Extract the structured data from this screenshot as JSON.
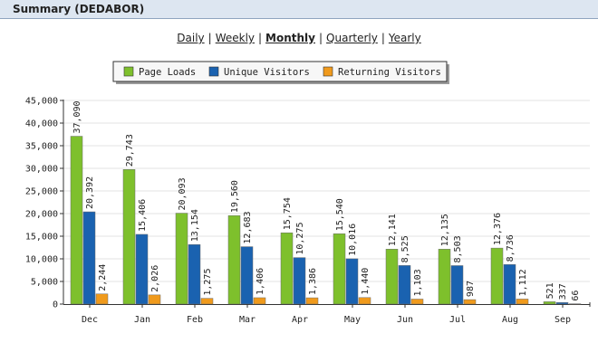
{
  "header": {
    "title": "Summary (DEDABOR)"
  },
  "nav": {
    "items": [
      {
        "label": "Daily",
        "active": false
      },
      {
        "label": "Weekly",
        "active": false
      },
      {
        "label": "Monthly",
        "active": true
      },
      {
        "label": "Quarterly",
        "active": false
      },
      {
        "label": "Yearly",
        "active": false
      }
    ],
    "separator": "|"
  },
  "chart_data": {
    "type": "bar",
    "categories": [
      "Dec",
      "Jan",
      "Feb",
      "Mar",
      "Apr",
      "May",
      "Jun",
      "Jul",
      "Aug",
      "Sep"
    ],
    "series": [
      {
        "name": "Page Loads",
        "color": "#7ec02c",
        "values": [
          37090,
          29743,
          20093,
          19560,
          15754,
          15540,
          12141,
          12135,
          12376,
          521
        ]
      },
      {
        "name": "Unique Visitors",
        "color": "#1a62b0",
        "values": [
          20392,
          15406,
          13154,
          12683,
          10275,
          10016,
          8525,
          8503,
          8736,
          337
        ]
      },
      {
        "name": "Returning Visitors",
        "color": "#f09a1c",
        "values": [
          2244,
          2026,
          1275,
          1406,
          1386,
          1440,
          1103,
          987,
          1112,
          66
        ]
      }
    ],
    "ylim": [
      0,
      45000
    ],
    "yticks": [
      "0",
      "5,000",
      "10,000",
      "15,000",
      "20,000",
      "25,000",
      "30,000",
      "35,000",
      "40,000",
      "45,000"
    ],
    "grid": true,
    "legend_position": "top-center"
  }
}
